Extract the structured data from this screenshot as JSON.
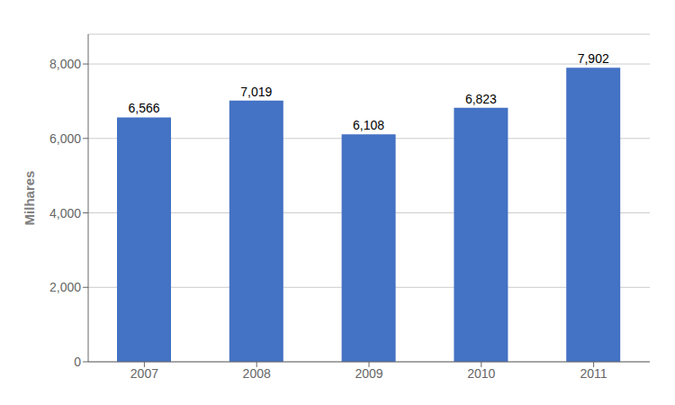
{
  "chart_data": {
    "type": "bar",
    "ylabel": "Milhares",
    "categories": [
      "2007",
      "2008",
      "2009",
      "2010",
      "2011"
    ],
    "values": [
      6566,
      7019,
      6108,
      6823,
      7902
    ],
    "value_labels": [
      "6,566",
      "7,019",
      "6,108",
      "6,823",
      "7,902"
    ],
    "data_labels": true,
    "color": "#4472C4",
    "ylim": [
      0,
      8800
    ],
    "yticks": [
      0,
      {
        "value": 2000,
        "label": "2,000"
      },
      {
        "value": 4000,
        "label": "4,000"
      },
      {
        "value": 6000,
        "label": "6,000"
      },
      {
        "value": 8000,
        "label": "8,000"
      }
    ],
    "grid": true
  }
}
